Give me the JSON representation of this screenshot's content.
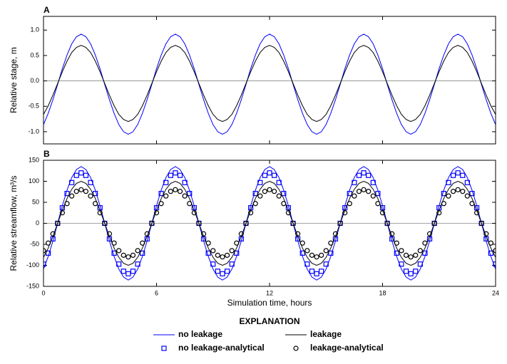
{
  "chart_data": [
    {
      "type": "line",
      "title": "A",
      "y_label": "Relative stage, m",
      "x": [
        0,
        0.25,
        0.5,
        0.75,
        1,
        1.25,
        1.5,
        1.75,
        2,
        2.25,
        2.5,
        2.75,
        3,
        3.25,
        3.5,
        3.75,
        4,
        4.25,
        4.5,
        4.75,
        5,
        5.25,
        5.5,
        5.75,
        6,
        6.25,
        6.5,
        6.75,
        7,
        7.25,
        7.5,
        7.75,
        8,
        8.25,
        8.5,
        8.75,
        9,
        9.25,
        9.5,
        9.75,
        10,
        10.25,
        10.5,
        10.75,
        11,
        11.25,
        11.5,
        11.75,
        12,
        12.25,
        12.5,
        12.75,
        13,
        13.25,
        13.5,
        13.75,
        14,
        14.25,
        14.5,
        14.75,
        15,
        15.25,
        15.5,
        15.75,
        16,
        16.25,
        16.5,
        16.75,
        17,
        17.25,
        17.5,
        17.75,
        18,
        18.25,
        18.5,
        18.75,
        19,
        19.25,
        19.5,
        19.75,
        20,
        20.25,
        20.5,
        20.75,
        21,
        21.25,
        21.5,
        21.75,
        22,
        22.25,
        22.5,
        22.75,
        23,
        23.25,
        23.5,
        23.75,
        24
      ],
      "series": [
        {
          "color": "#0000ff",
          "values": [
            -0.86,
            -0.64,
            -0.37,
            -0.07,
            0.24,
            0.51,
            0.73,
            0.87,
            0.92,
            0.87,
            0.73,
            0.51,
            0.24,
            -0.07,
            -0.37,
            -0.64,
            -0.86,
            -1.0,
            -1.05,
            -1.0,
            -0.86,
            -0.64,
            -0.37,
            -0.07,
            0.24,
            0.51,
            0.73,
            0.87,
            0.92,
            0.87,
            0.73,
            0.51,
            0.24,
            -0.07,
            -0.37,
            -0.64,
            -0.86,
            -1.0,
            -1.05,
            -1.0,
            -0.86,
            -0.64,
            -0.37,
            -0.07,
            0.24,
            0.51,
            0.73,
            0.87,
            0.92,
            0.87,
            0.73,
            0.51,
            0.24,
            -0.07,
            -0.37,
            -0.64,
            -0.86,
            -1.0,
            -1.05,
            -1.0,
            -0.86,
            -0.64,
            -0.37,
            -0.07,
            0.24,
            0.51,
            0.73,
            0.87,
            0.92,
            0.87,
            0.73,
            0.51,
            0.24,
            -0.07,
            -0.37,
            -0.64,
            -0.86,
            -1.0,
            -1.05,
            -1.0,
            -0.86,
            -0.64,
            -0.37,
            -0.07,
            0.24,
            0.51,
            0.73,
            0.87,
            0.92,
            0.87,
            0.73,
            0.51,
            0.24,
            -0.07,
            -0.37,
            -0.64,
            -0.86
          ]
        },
        {
          "color": "#000000",
          "values": [
            -0.66,
            -0.49,
            -0.28,
            -0.05,
            0.18,
            0.39,
            0.56,
            0.66,
            0.7,
            0.66,
            0.56,
            0.39,
            0.18,
            -0.05,
            -0.28,
            -0.49,
            -0.66,
            -0.76,
            -0.8,
            -0.76,
            -0.66,
            -0.49,
            -0.28,
            -0.05,
            0.18,
            0.39,
            0.56,
            0.66,
            0.7,
            0.66,
            0.56,
            0.39,
            0.18,
            -0.05,
            -0.28,
            -0.49,
            -0.66,
            -0.76,
            -0.8,
            -0.76,
            -0.66,
            -0.49,
            -0.28,
            -0.05,
            0.18,
            0.39,
            0.56,
            0.66,
            0.7,
            0.66,
            0.56,
            0.39,
            0.18,
            -0.05,
            -0.28,
            -0.49,
            -0.66,
            -0.76,
            -0.8,
            -0.76,
            -0.66,
            -0.49,
            -0.28,
            -0.05,
            0.18,
            0.39,
            0.56,
            0.66,
            0.7,
            0.66,
            0.56,
            0.39,
            0.18,
            -0.05,
            -0.28,
            -0.49,
            -0.66,
            -0.76,
            -0.8,
            -0.76,
            -0.66,
            -0.49,
            -0.28,
            -0.05,
            0.18,
            0.39,
            0.56,
            0.66,
            0.7,
            0.66,
            0.56,
            0.39,
            0.18,
            -0.05,
            -0.28,
            -0.49,
            -0.66
          ]
        }
      ],
      "xlim": [
        0,
        24
      ],
      "xticks": [
        0,
        6,
        12,
        18,
        24
      ],
      "xtick_labels": false,
      "ylim": [
        -1.24,
        1.27
      ],
      "yticks": [
        {
          "value": -1,
          "label": "-1.0"
        },
        {
          "value": -0.5,
          "label": "-0.5"
        },
        {
          "value": 0,
          "label": "0.0"
        },
        {
          "value": 0.5,
          "label": "0.5"
        },
        {
          "value": 1,
          "label": "1.0"
        }
      ],
      "zero_line": true
    },
    {
      "type": "line",
      "title": "B",
      "y_label": "Relative streamflow, m³/s",
      "x_label": "Simulation time, hours",
      "legend_title": "EXPLANATION",
      "x": [
        0,
        0.25,
        0.5,
        0.75,
        1,
        1.25,
        1.5,
        1.75,
        2,
        2.25,
        2.5,
        2.75,
        3,
        3.25,
        3.5,
        3.75,
        4,
        4.25,
        4.5,
        4.75,
        5,
        5.25,
        5.5,
        5.75,
        6,
        6.25,
        6.5,
        6.75,
        7,
        7.25,
        7.5,
        7.75,
        8,
        8.25,
        8.5,
        8.75,
        9,
        9.25,
        9.5,
        9.75,
        10,
        10.25,
        10.5,
        10.75,
        11,
        11.25,
        11.5,
        11.75,
        12,
        12.25,
        12.5,
        12.75,
        13,
        13.25,
        13.5,
        13.75,
        14,
        14.25,
        14.5,
        14.75,
        15,
        15.25,
        15.5,
        15.75,
        16,
        16.25,
        16.5,
        16.75,
        17,
        17.25,
        17.5,
        17.75,
        18,
        18.25,
        18.5,
        18.75,
        19,
        19.25,
        19.5,
        19.75,
        20,
        20.25,
        20.5,
        20.75,
        21,
        21.25,
        21.5,
        21.75,
        22,
        22.25,
        22.5,
        22.75,
        23,
        23.25,
        23.5,
        23.75,
        24
      ],
      "series": [
        {
          "name": "no leakage",
          "color": "#0000ff",
          "marker": "line",
          "values": [
            -109,
            -79,
            -42,
            0,
            42,
            79,
            109,
            128,
            135,
            128,
            109,
            79,
            42,
            0,
            -42,
            -79,
            -109,
            -128,
            -135,
            -128,
            -109,
            -79,
            -42,
            0,
            42,
            79,
            109,
            128,
            135,
            128,
            109,
            79,
            42,
            0,
            -42,
            -79,
            -109,
            -128,
            -135,
            -128,
            -109,
            -79,
            -42,
            0,
            42,
            79,
            109,
            128,
            135,
            128,
            109,
            79,
            42,
            0,
            -42,
            -79,
            -109,
            -128,
            -135,
            -128,
            -109,
            -79,
            -42,
            0,
            42,
            79,
            109,
            128,
            135,
            128,
            109,
            79,
            42,
            0,
            -42,
            -79,
            -109,
            -128,
            -135,
            -128,
            -109,
            -79,
            -42,
            0,
            42,
            79,
            109,
            128,
            135,
            128,
            109,
            79,
            42,
            0,
            -42,
            -79,
            -109
          ]
        },
        {
          "name": "no leakage-analytical",
          "color": "#0000ff",
          "marker": "square",
          "values": [
            -97,
            -71,
            -37,
            0,
            37,
            71,
            97,
            114,
            120,
            114,
            97,
            71,
            37,
            0,
            -37,
            -71,
            -97,
            -114,
            -120,
            -114,
            -97,
            -71,
            -37,
            0,
            37,
            71,
            97,
            114,
            120,
            114,
            97,
            71,
            37,
            0,
            -37,
            -71,
            -97,
            -114,
            -120,
            -114,
            -97,
            -71,
            -37,
            0,
            37,
            71,
            97,
            114,
            120,
            114,
            97,
            71,
            37,
            0,
            -37,
            -71,
            -97,
            -114,
            -120,
            -114,
            -97,
            -71,
            -37,
            0,
            37,
            71,
            97,
            114,
            120,
            114,
            97,
            71,
            37,
            0,
            -37,
            -71,
            -97,
            -114,
            -120,
            -114,
            -97,
            -71,
            -37,
            0,
            37,
            71,
            97,
            114,
            120,
            114,
            97,
            71,
            37,
            0,
            -37,
            -71,
            -97
          ]
        },
        {
          "name": "leakage",
          "color": "#000000",
          "marker": "line",
          "values": [
            -81,
            -59,
            -31,
            0,
            31,
            59,
            81,
            95,
            100,
            95,
            81,
            59,
            31,
            0,
            -31,
            -59,
            -81,
            -95,
            -100,
            -95,
            -81,
            -59,
            -31,
            0,
            31,
            59,
            81,
            95,
            100,
            95,
            81,
            59,
            31,
            0,
            -31,
            -59,
            -81,
            -95,
            -100,
            -95,
            -81,
            -59,
            -31,
            0,
            31,
            59,
            81,
            95,
            100,
            95,
            81,
            59,
            31,
            0,
            -31,
            -59,
            -81,
            -95,
            -100,
            -95,
            -81,
            -59,
            -31,
            0,
            31,
            59,
            81,
            95,
            100,
            95,
            81,
            59,
            31,
            0,
            -31,
            -59,
            -81,
            -95,
            -100,
            -95,
            -81,
            -59,
            -31,
            0,
            31,
            59,
            81,
            95,
            100,
            95,
            81,
            59,
            31,
            0,
            -31,
            -59,
            -81
          ]
        },
        {
          "name": "leakage-analytical",
          "color": "#000000",
          "marker": "circle",
          "values": [
            -65,
            -47,
            -25,
            0,
            25,
            47,
            65,
            76,
            80,
            76,
            65,
            47,
            25,
            0,
            -25,
            -47,
            -65,
            -76,
            -80,
            -76,
            -65,
            -47,
            -25,
            0,
            25,
            47,
            65,
            76,
            80,
            76,
            65,
            47,
            25,
            0,
            -25,
            -47,
            -65,
            -76,
            -80,
            -76,
            -65,
            -47,
            -25,
            0,
            25,
            47,
            65,
            76,
            80,
            76,
            65,
            47,
            25,
            0,
            -25,
            -47,
            -65,
            -76,
            -80,
            -76,
            -65,
            -47,
            -25,
            0,
            25,
            47,
            65,
            76,
            80,
            76,
            65,
            47,
            25,
            0,
            -25,
            -47,
            -65,
            -76,
            -80,
            -76,
            -65,
            -47,
            -25,
            0,
            25,
            47,
            65,
            76,
            80,
            76,
            65,
            47,
            25,
            0,
            -25,
            -47,
            -65
          ]
        }
      ],
      "xlim": [
        0,
        24
      ],
      "xticks": [
        0,
        6,
        12,
        18,
        24
      ],
      "xtick_labels": true,
      "ylim": [
        -150,
        150
      ],
      "yticks": [
        -150,
        -100,
        -50,
        0,
        50,
        100,
        150
      ],
      "zero_line": true
    }
  ]
}
